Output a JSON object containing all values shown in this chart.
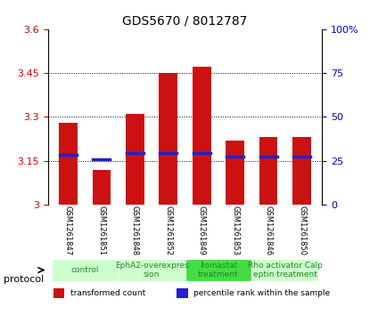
{
  "title": "GDS5670 / 8012787",
  "samples": [
    "GSM1261847",
    "GSM1261851",
    "GSM1261848",
    "GSM1261852",
    "GSM1261849",
    "GSM1261853",
    "GSM1261846",
    "GSM1261850"
  ],
  "bar_tops": [
    3.28,
    3.12,
    3.31,
    3.45,
    3.47,
    3.22,
    3.23,
    3.23
  ],
  "bar_bottoms": [
    3.0,
    3.0,
    3.0,
    3.0,
    3.0,
    3.0,
    3.0,
    3.0
  ],
  "blue_marks": [
    3.17,
    3.155,
    3.175,
    3.175,
    3.175,
    3.165,
    3.163,
    3.165
  ],
  "ylim": [
    3.0,
    3.6
  ],
  "yticks": [
    3.0,
    3.15,
    3.3,
    3.45,
    3.6
  ],
  "ytick_labels": [
    "3",
    "3.15",
    "3.3",
    "3.45",
    "3.6"
  ],
  "right_yticks": [
    0,
    25,
    50,
    75,
    100
  ],
  "right_ytick_labels": [
    "0",
    "25",
    "50",
    "75",
    "100%"
  ],
  "bar_color": "#cc1111",
  "blue_color": "#2222cc",
  "protocols": [
    {
      "label": "control",
      "spans": [
        0,
        2
      ],
      "color": "#ccffcc"
    },
    {
      "label": "EphA2-overexpres\nsion",
      "spans": [
        2,
        4
      ],
      "color": "#ccffcc"
    },
    {
      "label": "Ilomastat\ntreatment",
      "spans": [
        4,
        6
      ],
      "color": "#44dd44"
    },
    {
      "label": "Rho activator Calp\neptin treatment",
      "spans": [
        6,
        8
      ],
      "color": "#ccffcc"
    }
  ],
  "protocol_label": "protocol",
  "legend_items": [
    {
      "color": "#cc1111",
      "label": "transformed count"
    },
    {
      "color": "#2222cc",
      "label": "percentile rank within the sample"
    }
  ],
  "grid_color": "#000000",
  "bg_color": "#ffffff",
  "plot_bg": "#ffffff",
  "xlabel_color": "#cc0000",
  "ylabel_right_color": "#0000cc"
}
